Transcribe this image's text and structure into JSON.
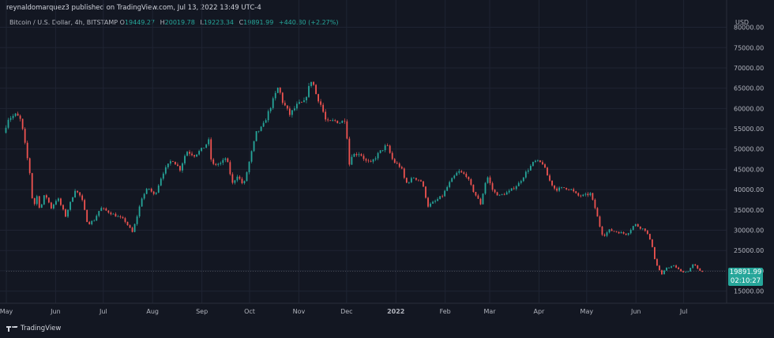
{
  "header": {
    "publisher": "reynaldomarquez3 published on TradingView.com, Jul 13, 2022 13:49 UTC-4"
  },
  "legend": {
    "symbol": "Bitcoin / U.S. Dollar, 4h, BITSTAMP",
    "open_label": "O",
    "open": "19449.27",
    "high_label": "H",
    "high": "20019.78",
    "low_label": "L",
    "low": "19223.34",
    "close_label": "C",
    "close": "19891.99",
    "change": "+440.80 (+2.27%)"
  },
  "price_axis": {
    "unit": "USD"
  },
  "last_price": {
    "value": "19891.99",
    "countdown": "02:10:27"
  },
  "footer": {
    "brand": "TradingView",
    "logo_icon": "tradingview-logo-icon"
  },
  "colors": {
    "background": "#131722",
    "up": "#26a69a",
    "down": "#ef5350",
    "grid": "#1f2433",
    "text": "#b2b5be"
  },
  "chart_data": {
    "type": "candlestick",
    "title": "Bitcoin / U.S. Dollar, 4h, BITSTAMP",
    "ylabel": "USD",
    "ylim": [
      12000,
      84000
    ],
    "yticks": [
      15000,
      20000,
      25000,
      30000,
      35000,
      40000,
      45000,
      50000,
      55000,
      60000,
      65000,
      70000,
      75000,
      80000
    ],
    "ytick_labels": [
      "15000.00",
      "20000.00",
      "25000.00",
      "30000.00",
      "35000.00",
      "40000.00",
      "45000.00",
      "50000.00",
      "55000.00",
      "60000.00",
      "65000.00",
      "70000.00",
      "75000.00",
      "80000.00"
    ],
    "xlim": [
      "2021-05-01",
      "2022-07-28"
    ],
    "xticks": [
      {
        "date": "2021-05-01",
        "label": "May"
      },
      {
        "date": "2021-06-01",
        "label": "Jun"
      },
      {
        "date": "2021-07-01",
        "label": "Jul"
      },
      {
        "date": "2021-08-01",
        "label": "Aug"
      },
      {
        "date": "2021-09-01",
        "label": "Sep"
      },
      {
        "date": "2021-10-01",
        "label": "Oct"
      },
      {
        "date": "2021-11-01",
        "label": "Nov"
      },
      {
        "date": "2021-12-01",
        "label": "Dec"
      },
      {
        "date": "2022-01-01",
        "label": "2022"
      },
      {
        "date": "2022-02-01",
        "label": "Feb"
      },
      {
        "date": "2022-03-01",
        "label": "Mar"
      },
      {
        "date": "2022-04-01",
        "label": "Apr"
      },
      {
        "date": "2022-05-01",
        "label": "May"
      },
      {
        "date": "2022-06-01",
        "label": "Jun"
      },
      {
        "date": "2022-07-01",
        "label": "Jul"
      }
    ],
    "last_price_line": 19891.99,
    "grid": true,
    "path": [
      [
        "2021-04-30",
        54000
      ],
      [
        "2021-05-03",
        57500
      ],
      [
        "2021-05-08",
        58500
      ],
      [
        "2021-05-11",
        57000
      ],
      [
        "2021-05-14",
        50000
      ],
      [
        "2021-05-17",
        43000
      ],
      [
        "2021-05-19",
        33000
      ],
      [
        "2021-05-20",
        40000
      ],
      [
        "2021-05-23",
        35000
      ],
      [
        "2021-05-26",
        39000
      ],
      [
        "2021-05-30",
        35500
      ],
      [
        "2021-06-03",
        38000
      ],
      [
        "2021-06-08",
        33500
      ],
      [
        "2021-06-14",
        40000
      ],
      [
        "2021-06-18",
        38000
      ],
      [
        "2021-06-22",
        31500
      ],
      [
        "2021-06-26",
        32500
      ],
      [
        "2021-06-30",
        35500
      ],
      [
        "2021-07-05",
        34500
      ],
      [
        "2021-07-10",
        33500
      ],
      [
        "2021-07-15",
        32500
      ],
      [
        "2021-07-20",
        29500
      ],
      [
        "2021-07-22",
        32000
      ],
      [
        "2021-07-26",
        38000
      ],
      [
        "2021-07-30",
        40500
      ],
      [
        "2021-08-03",
        38500
      ],
      [
        "2021-08-08",
        44000
      ],
      [
        "2021-08-14",
        47500
      ],
      [
        "2021-08-19",
        45000
      ],
      [
        "2021-08-23",
        49500
      ],
      [
        "2021-08-28",
        48500
      ],
      [
        "2021-09-02",
        50000
      ],
      [
        "2021-09-06",
        52000
      ],
      [
        "2021-09-08",
        46000
      ],
      [
        "2021-09-14",
        46500
      ],
      [
        "2021-09-17",
        48000
      ],
      [
        "2021-09-21",
        41500
      ],
      [
        "2021-09-24",
        43500
      ],
      [
        "2021-09-28",
        41000
      ],
      [
        "2021-10-01",
        46000
      ],
      [
        "2021-10-06",
        54000
      ],
      [
        "2021-10-10",
        55500
      ],
      [
        "2021-10-15",
        60500
      ],
      [
        "2021-10-20",
        65500
      ],
      [
        "2021-10-22",
        62000
      ],
      [
        "2021-10-27",
        58500
      ],
      [
        "2021-11-01",
        61000
      ],
      [
        "2021-11-05",
        61500
      ],
      [
        "2021-11-10",
        67500
      ],
      [
        "2021-11-12",
        64000
      ],
      [
        "2021-11-16",
        60500
      ],
      [
        "2021-11-19",
        56500
      ],
      [
        "2021-11-24",
        57000
      ],
      [
        "2021-11-28",
        56500
      ],
      [
        "2021-12-01",
        57500
      ],
      [
        "2021-12-04",
        44000
      ],
      [
        "2021-12-05",
        48500
      ],
      [
        "2021-12-10",
        49000
      ],
      [
        "2021-12-14",
        47000
      ],
      [
        "2021-12-17",
        46500
      ],
      [
        "2021-12-22",
        49000
      ],
      [
        "2021-12-27",
        51000
      ],
      [
        "2021-12-31",
        47000
      ],
      [
        "2022-01-05",
        45500
      ],
      [
        "2022-01-08",
        41500
      ],
      [
        "2022-01-13",
        43000
      ],
      [
        "2022-01-18",
        42000
      ],
      [
        "2022-01-22",
        36000
      ],
      [
        "2022-01-26",
        37000
      ],
      [
        "2022-01-31",
        38500
      ],
      [
        "2022-02-05",
        42000
      ],
      [
        "2022-02-10",
        44500
      ],
      [
        "2022-02-15",
        43500
      ],
      [
        "2022-02-19",
        40000
      ],
      [
        "2022-02-24",
        36500
      ],
      [
        "2022-02-28",
        43500
      ],
      [
        "2022-03-04",
        39500
      ],
      [
        "2022-03-08",
        38500
      ],
      [
        "2022-03-14",
        39500
      ],
      [
        "2022-03-20",
        41500
      ],
      [
        "2022-03-25",
        44500
      ],
      [
        "2022-03-30",
        47000
      ],
      [
        "2022-04-04",
        46500
      ],
      [
        "2022-04-08",
        42500
      ],
      [
        "2022-04-12",
        40000
      ],
      [
        "2022-04-18",
        40500
      ],
      [
        "2022-04-22",
        40000
      ],
      [
        "2022-04-26",
        38500
      ],
      [
        "2022-04-30",
        38500
      ],
      [
        "2022-05-04",
        39000
      ],
      [
        "2022-05-07",
        35500
      ],
      [
        "2022-05-10",
        31000
      ],
      [
        "2022-05-12",
        28500
      ],
      [
        "2022-05-16",
        30000
      ],
      [
        "2022-05-22",
        29500
      ],
      [
        "2022-05-27",
        29000
      ],
      [
        "2022-06-01",
        31500
      ],
      [
        "2022-06-05",
        30500
      ],
      [
        "2022-06-08",
        30000
      ],
      [
        "2022-06-12",
        26000
      ],
      [
        "2022-06-14",
        22000
      ],
      [
        "2022-06-18",
        19000
      ],
      [
        "2022-06-21",
        20800
      ],
      [
        "2022-06-26",
        21200
      ],
      [
        "2022-06-30",
        19800
      ],
      [
        "2022-07-04",
        19700
      ],
      [
        "2022-07-08",
        21700
      ],
      [
        "2022-07-11",
        20200
      ],
      [
        "2022-07-13",
        19892
      ]
    ]
  }
}
